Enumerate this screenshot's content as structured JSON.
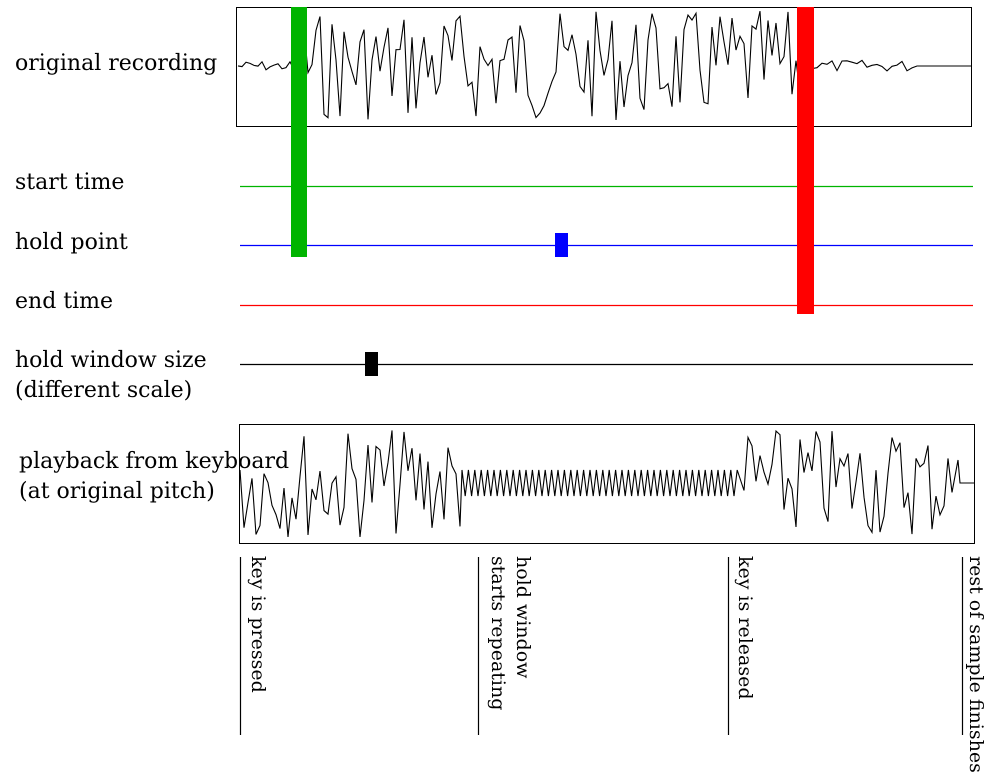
{
  "rows": {
    "original_recording": "original recording",
    "start_time": "start time",
    "hold_point": "hold point",
    "end_time": "end time",
    "hold_window_line1": "hold window size",
    "hold_window_line2": "(different scale)",
    "playback_line1": "playback from keyboard",
    "playback_line2": "(at original pitch)"
  },
  "events": {
    "key_pressed": "key is pressed",
    "hold_line1": "hold window",
    "hold_line2": "starts repeating",
    "key_released": "key is released",
    "rest_finishes": "rest of sample finishes"
  },
  "colors": {
    "start": "#00b400",
    "hold": "#0000ff",
    "end": "#ff0000",
    "window": "#000000",
    "wave": "#000000"
  }
}
